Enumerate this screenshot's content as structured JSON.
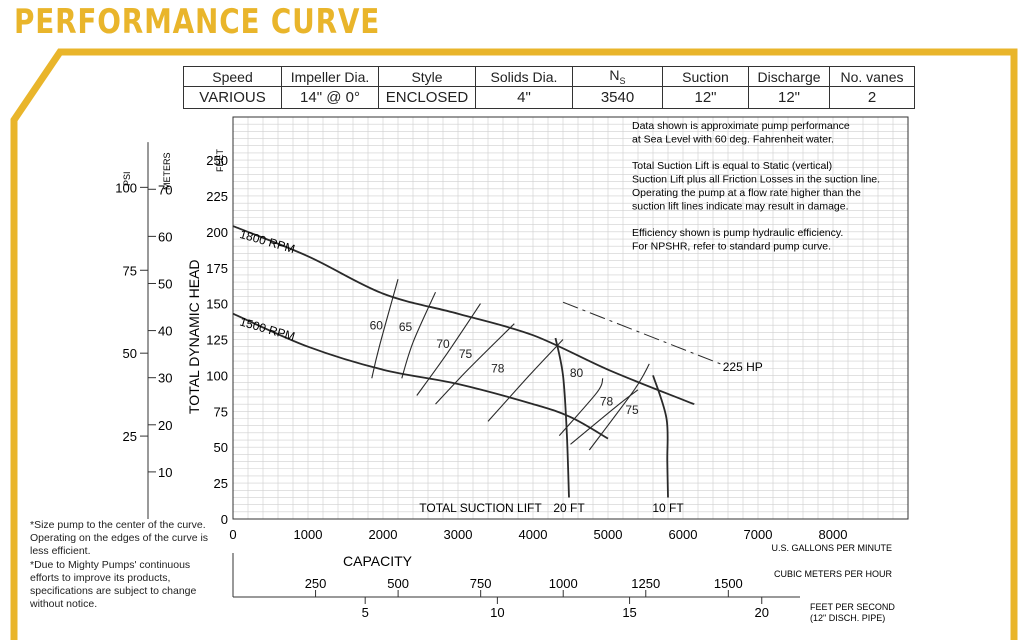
{
  "page_title": "PERFORMANCE CURVE",
  "spec_table": {
    "headers": [
      "Speed",
      "Impeller Dia.",
      "Style",
      "Solids Dia.",
      "N_S",
      "Suction",
      "Discharge",
      "No. vanes"
    ],
    "ns_main": "N",
    "ns_sub": "S",
    "values": [
      "VARIOUS",
      "14\" @ 0°",
      "ENCLOSED",
      "4\"",
      "3540",
      "12\"",
      "12\"",
      "2"
    ]
  },
  "footnotes": [
    "*Size pump to the center of the curve. Operating on the edges of the curve is less efficient.",
    "*Due to Mighty Pumps' continuous efforts to improve its products, specifications are subject to change without notice."
  ],
  "colors": {
    "accent": "#e9b52b",
    "grid": "#cfcfcf",
    "curve": "#2a2a2a"
  },
  "chart_data": {
    "type": "line",
    "ylabel": "TOTAL DYNAMIC HEAD",
    "y_unit": "FEET",
    "ylim": [
      0,
      280
    ],
    "y_ticks": [
      0,
      25,
      50,
      75,
      100,
      125,
      150,
      175,
      200,
      225,
      250
    ],
    "xlim": [
      0,
      9000
    ],
    "x_ticks": [
      0,
      1000,
      2000,
      3000,
      4000,
      5000,
      6000,
      7000,
      8000
    ],
    "x_unit": "U.S. GALLONS PER MINUTE",
    "grid": true,
    "notes": [
      "Data shown is approximate pump performance",
      "at Sea Level with 60 deg. Fahrenheit water.",
      "",
      "Total Suction Lift is equal to Static (vertical)",
      "Suction Lift plus all Friction Losses in the suction line.",
      "Operating the pump at a flow rate higher than the",
      "suction lift lines indicate may result in damage.",
      "",
      "Efficiency shown is pump hydraulic efficiency.",
      "For NPSHR, refer to standard pump curve."
    ],
    "secondary_axes": {
      "psi": {
        "label": "PSI",
        "ticks": [
          25,
          50,
          75,
          100
        ]
      },
      "meters": {
        "label": "METERS",
        "ticks": [
          10,
          20,
          30,
          40,
          50,
          60,
          70
        ]
      },
      "capacity_label": "CAPACITY",
      "cubic_meters_per_hour": {
        "label": "CUBIC METERS PER HOUR",
        "ticks": [
          250,
          500,
          750,
          1000,
          1250,
          1500
        ]
      },
      "feet_per_second": {
        "label": "FEET PER SECOND",
        "sublabel": "(12\" DISCH. PIPE)",
        "ticks": [
          5,
          10,
          15,
          20
        ]
      }
    },
    "series": [
      {
        "name": "1800 RPM",
        "x": [
          0,
          1000,
          2000,
          3000,
          4000,
          5000,
          6000,
          6150
        ],
        "y": [
          204,
          183,
          157,
          143,
          128,
          104,
          83,
          80
        ]
      },
      {
        "name": "1500 RPM",
        "x": [
          0,
          1000,
          2000,
          3000,
          4000,
          4500,
          5000
        ],
        "y": [
          143,
          120,
          104,
          94,
          80,
          71,
          56
        ]
      },
      {
        "name": "225 HP",
        "x": [
          4400,
          6500
        ],
        "y": [
          151,
          108
        ]
      }
    ],
    "suction_lift": {
      "label": "TOTAL SUCTION LIFT",
      "lines": [
        {
          "name": "20 FT",
          "x": [
            4300,
            4400,
            4450,
            4480
          ],
          "y": [
            126,
            100,
            60,
            15
          ]
        },
        {
          "name": "10 FT",
          "x": [
            5600,
            5780,
            5790,
            5800
          ],
          "y": [
            100,
            70,
            40,
            15
          ]
        }
      ]
    },
    "efficiency_contours": [
      {
        "label": "60",
        "x": [
          1850,
          1950,
          2200
        ],
        "y": [
          98,
          120,
          167
        ]
      },
      {
        "label": "65",
        "x": [
          2250,
          2400,
          2700
        ],
        "y": [
          98,
          123,
          158
        ]
      },
      {
        "label": "70",
        "x": [
          2450,
          2850,
          3300
        ],
        "y": [
          86,
          115,
          150
        ]
      },
      {
        "label": "75",
        "x": [
          2700,
          3150,
          3750
        ],
        "y": [
          80,
          105,
          136
        ]
      },
      {
        "label": "78",
        "x": [
          3400,
          3950,
          4400
        ],
        "y": [
          68,
          100,
          125
        ]
      },
      {
        "label": "80",
        "x": [
          4350,
          4850,
          4930
        ],
        "y": [
          58,
          88,
          98
        ]
      },
      {
        "label": "78",
        "x": [
          4500,
          5150,
          5400
        ],
        "y": [
          52,
          80,
          90
        ]
      },
      {
        "label": "75",
        "x": [
          4750,
          5350,
          5550
        ],
        "y": [
          48,
          90,
          108
        ]
      }
    ]
  }
}
